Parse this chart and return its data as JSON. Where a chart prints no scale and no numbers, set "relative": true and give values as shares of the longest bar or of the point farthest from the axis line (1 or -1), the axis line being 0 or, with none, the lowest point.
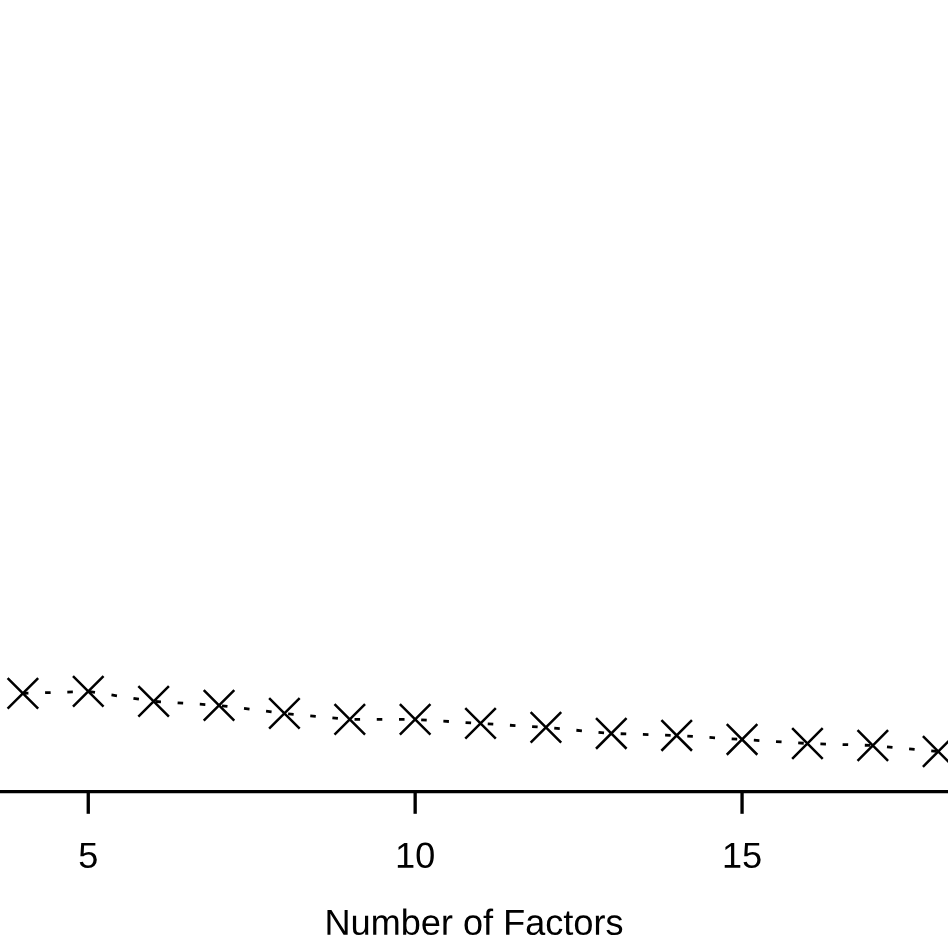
{
  "chart_data": {
    "type": "line",
    "xlabel": "Number of Factors",
    "relative": true,
    "x": [
      4,
      5,
      6,
      7,
      8,
      9,
      10,
      11,
      12,
      13,
      14,
      15,
      16,
      17,
      18
    ],
    "values": [
      0.98,
      1,
      0.9,
      0.86,
      0.78,
      0.72,
      0.72,
      0.68,
      0.64,
      0.58,
      0.56,
      0.52,
      0.48,
      0.46,
      0.4
    ],
    "color": "#000000",
    "marker": "cross",
    "line_style": "dashed",
    "xlim": [
      3.65,
      18.15
    ],
    "xticks": [
      5,
      10,
      15
    ],
    "tick_labels": "x",
    "grid": false,
    "legend": false
  }
}
